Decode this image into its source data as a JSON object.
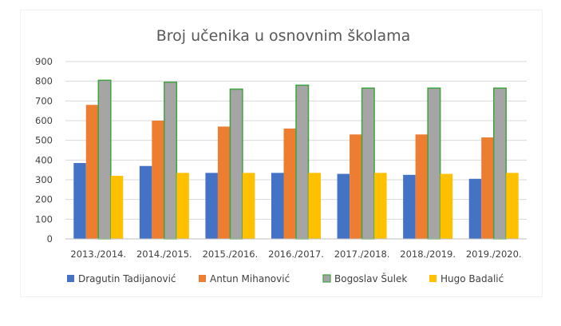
{
  "chart_data": {
    "type": "bar",
    "title": "Broj učenika u osnovnim školama",
    "categories": [
      "2013./2014.",
      "2014./2015.",
      "2015./2016.",
      "2016./2017.",
      "2017./2018.",
      "2018./2019.",
      "2019./2020."
    ],
    "series": [
      {
        "name": "Dragutin Tadijanović",
        "values": [
          385,
          370,
          335,
          335,
          330,
          325,
          305
        ],
        "color": "#4472c4"
      },
      {
        "name": "Antun Mihanović",
        "values": [
          680,
          600,
          570,
          560,
          530,
          530,
          515
        ],
        "color": "#ed7d31"
      },
      {
        "name": "Bogoslav Šulek",
        "values": [
          805,
          795,
          760,
          780,
          765,
          765,
          765
        ],
        "color": "#a5a5a5",
        "border": "#3fa33f"
      },
      {
        "name": "Hugo Badalić",
        "values": [
          320,
          335,
          335,
          335,
          335,
          330,
          335
        ],
        "color": "#ffc000"
      }
    ],
    "yticks": [
      0,
      100,
      200,
      300,
      400,
      500,
      600,
      700,
      800,
      900
    ],
    "ylim": [
      0,
      900
    ],
    "grid": true,
    "legend_position": "bottom"
  }
}
